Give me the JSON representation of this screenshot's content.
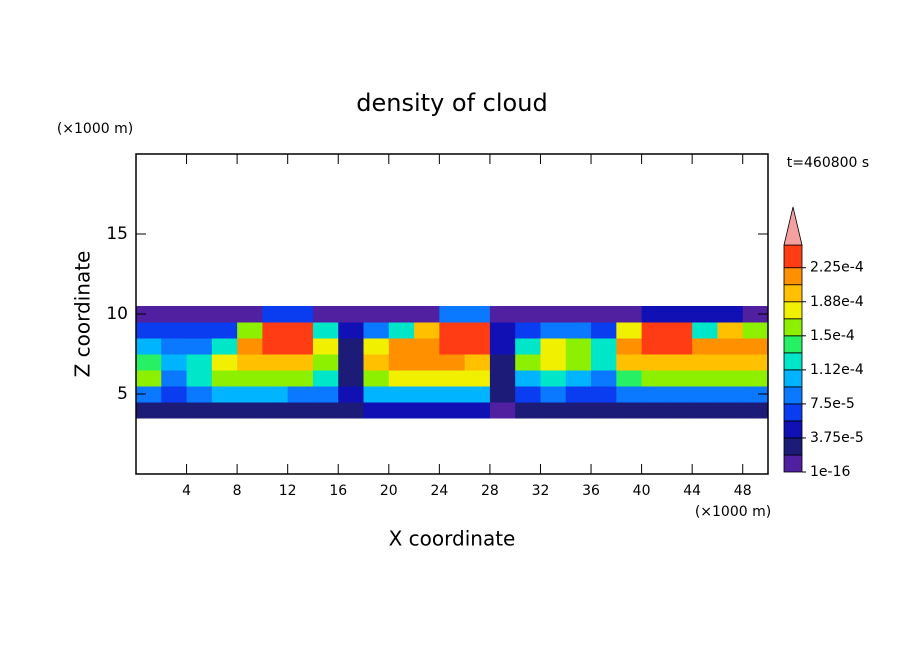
{
  "chart_data": {
    "type": "contour",
    "title": "density of cloud",
    "x_label": "X coordinate",
    "y_label": "Z coordinate",
    "x_unit": "(×1000 m)",
    "y_unit": "(×1000 m)",
    "annotation": "t=460800 s",
    "xlim": [
      0,
      50
    ],
    "ylim": [
      0,
      20
    ],
    "xticks": [
      4,
      8,
      12,
      16,
      20,
      24,
      28,
      32,
      36,
      40,
      44,
      48
    ],
    "yticks": [
      5,
      10,
      15
    ],
    "x": [
      1,
      3,
      5,
      7,
      9,
      11,
      13,
      15,
      17,
      19,
      21,
      23,
      25,
      27,
      29,
      31,
      33,
      35,
      37,
      39,
      41,
      43,
      45,
      47,
      49
    ],
    "y": [
      4,
      5,
      6,
      7,
      8,
      9,
      10
    ],
    "z": [
      [
        2e-05,
        3e-05,
        3e-05,
        3e-05,
        3e-05,
        3e-05,
        3e-05,
        3e-05,
        2e-05,
        4e-05,
        4e-05,
        4e-05,
        4e-05,
        4e-05,
        1e-05,
        3e-05,
        3e-05,
        3e-05,
        3e-05,
        3e-05,
        3e-05,
        3e-05,
        3e-05,
        3e-05,
        3e-05
      ],
      [
        9e-05,
        7e-05,
        8e-05,
        0.0001,
        0.00011,
        0.0001,
        9e-05,
        8e-05,
        4e-05,
        0.0001,
        0.00011,
        0.00011,
        0.00011,
        0.00011,
        2e-05,
        7e-05,
        8e-05,
        7e-05,
        6e-05,
        9e-05,
        9e-05,
        9e-05,
        9e-05,
        9e-05,
        9e-05
      ],
      [
        0.00015,
        9e-05,
        0.00013,
        0.00016,
        0.00016,
        0.00015,
        0.00015,
        0.00012,
        3e-05,
        0.00016,
        0.00017,
        0.00017,
        0.00017,
        0.00017,
        2e-05,
        0.00011,
        0.00012,
        0.00011,
        9e-05,
        0.00014,
        0.00015,
        0.00015,
        0.00015,
        0.00015,
        0.00015
      ],
      [
        0.00014,
        0.00011,
        0.00012,
        0.00017,
        0.0002,
        0.0002,
        0.00019,
        0.00015,
        3e-05,
        0.0002,
        0.00021,
        0.00021,
        0.00021,
        0.00019,
        3e-05,
        0.00015,
        0.00018,
        0.00016,
        0.00013,
        0.00019,
        0.0002,
        0.0002,
        0.00019,
        0.0002,
        0.00019
      ],
      [
        0.00011,
        9e-05,
        8e-05,
        0.00013,
        0.00021,
        0.00023,
        0.00023,
        0.00018,
        3e-05,
        0.00018,
        0.00022,
        0.00022,
        0.00023,
        0.00023,
        4e-05,
        0.00013,
        0.00017,
        0.00016,
        0.00012,
        0.00021,
        0.00023,
        0.00023,
        0.00021,
        0.00022,
        0.00022
      ],
      [
        6e-05,
        6e-05,
        6e-05,
        6e-05,
        0.00015,
        0.00023,
        0.00023,
        0.00012,
        4e-05,
        8e-05,
        0.00012,
        0.00019,
        0.00023,
        0.00023,
        5e-05,
        6e-05,
        9e-05,
        9e-05,
        7e-05,
        0.00018,
        0.00023,
        0.00023,
        0.00013,
        0.0002,
        0.00016
      ],
      [
        1.5e-05,
        1.5e-05,
        1.5e-05,
        1.5e-05,
        1.5e-05,
        6e-05,
        6e-05,
        1.5e-05,
        1.5e-05,
        1.5e-05,
        1.5e-05,
        1.5e-05,
        9e-05,
        9e-05,
        1.5e-05,
        1.5e-05,
        1.5e-05,
        1.5e-05,
        1.5e-05,
        1.5e-05,
        5e-05,
        5e-05,
        5e-05,
        5e-05,
        1.5e-05
      ]
    ],
    "clim": [
      1e-16,
      0.00025
    ],
    "levels": [
      1e-16,
      1.875e-05,
      3.75e-05,
      5.625e-05,
      7.5e-05,
      9.375e-05,
      0.0001125,
      0.00013125,
      0.00015,
      0.00016875,
      0.0001875,
      0.00020625,
      0.000225
    ],
    "colors": [
      "#5020a0",
      "#1c1c78",
      "#1010b4",
      "#0a3cf0",
      "#0a78ff",
      "#00b4ff",
      "#00e6c8",
      "#28f064",
      "#8cf000",
      "#f0f000",
      "#ffc000",
      "#ff9000",
      "#ff3c14"
    ],
    "over_color": "#f4a0a0",
    "cticks": [
      {
        "value": 1e-16,
        "label": "1e-16"
      },
      {
        "value": 3.75e-05,
        "label": "3.75e-5"
      },
      {
        "value": 7.5e-05,
        "label": "7.5e-5"
      },
      {
        "value": 0.0001125,
        "label": "1.12e-4"
      },
      {
        "value": 0.00015,
        "label": "1.5e-4"
      },
      {
        "value": 0.0001875,
        "label": "1.88e-4"
      },
      {
        "value": 0.000225,
        "label": "2.25e-4"
      }
    ]
  }
}
